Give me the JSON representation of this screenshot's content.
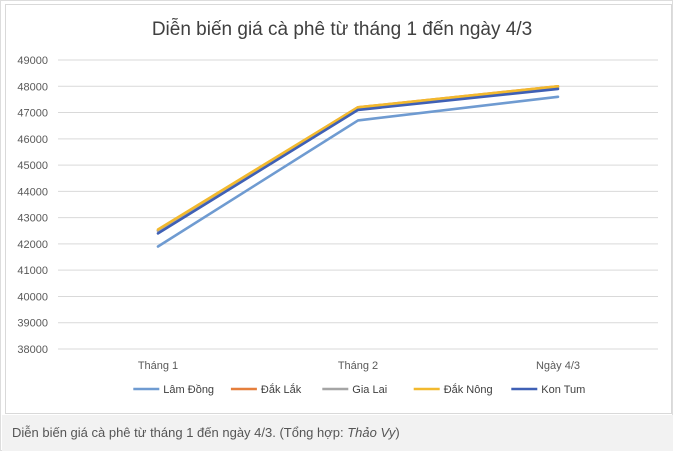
{
  "chart_data": {
    "type": "line",
    "title": "Diễn biến giá cà phê từ tháng 1 đến ngày 4/3",
    "categories": [
      "Tháng 1",
      "Tháng 2",
      "Ngày 4/3"
    ],
    "ylim": [
      38000,
      49000
    ],
    "yticks": [
      38000,
      39000,
      40000,
      41000,
      42000,
      43000,
      44000,
      45000,
      46000,
      47000,
      48000,
      49000
    ],
    "grid": true,
    "legend_position": "bottom",
    "series": [
      {
        "name": "Lâm Đồng",
        "color": "#6f9bd1",
        "values": [
          41900,
          46700,
          47600
        ]
      },
      {
        "name": "Đắk Lắk",
        "color": "#e57f3c",
        "values": [
          42500,
          47200,
          48000
        ]
      },
      {
        "name": "Gia Lai",
        "color": "#a5a5a5",
        "values": [
          42500,
          47150,
          47950
        ]
      },
      {
        "name": "Đắk Nông",
        "color": "#f2b92e",
        "values": [
          42550,
          47200,
          48000
        ]
      },
      {
        "name": "Kon Tum",
        "color": "#3f60b5",
        "values": [
          42400,
          47100,
          47900
        ]
      }
    ]
  },
  "caption": {
    "text": "Diễn biến giá cà phê từ tháng 1 đến ngày 4/3. (Tổng hợp: ",
    "author": "Thảo Vy",
    "close": ")"
  }
}
